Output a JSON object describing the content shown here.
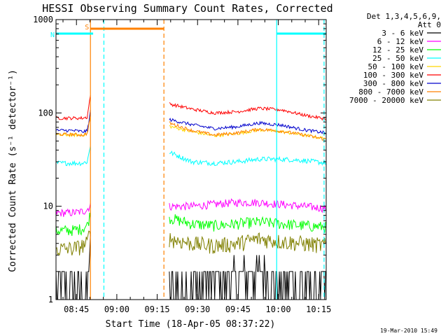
{
  "chart_data": {
    "type": "line",
    "title": "HESSI Observing Summary Count Rates, Corrected",
    "xlabel": "Start Time (18-Apr-05 08:37:22)",
    "ylabel": "Corrected Count Rate (s⁻¹ detector⁻¹)",
    "yscale": "log",
    "ylim": [
      1,
      1000
    ],
    "xlim_minutes": [
      37.4,
      137.8
    ],
    "x_ticks": [
      {
        "label": "08:45",
        "minute": 45
      },
      {
        "label": "09:00",
        "minute": 60
      },
      {
        "label": "09:15",
        "minute": 75
      },
      {
        "label": "09:30",
        "minute": 90
      },
      {
        "label": "09:45",
        "minute": 105
      },
      {
        "label": "10:00",
        "minute": 120
      },
      {
        "label": "10:15",
        "minute": 135
      }
    ],
    "y_ticks": [
      {
        "label": "1",
        "value": 1
      },
      {
        "label": "10",
        "value": 10
      },
      {
        "label": "100",
        "value": 100
      },
      {
        "label": "1000",
        "value": 1000
      }
    ],
    "legend_header": [
      "Det 1,3,4,5,6,9,",
      "Att 0"
    ],
    "legend_placement": "right",
    "timestamp": "19-Mar-2010 15:49",
    "flags": [
      {
        "label": "S",
        "color": "#ff8000",
        "start": 50.2,
        "end": 77.5
      },
      {
        "label": "N",
        "color": "#00ffff",
        "start": 37.4,
        "end": 51.2
      },
      {
        "label": "",
        "color": "#00ffff",
        "start": 119.4,
        "end": 137.8
      }
    ],
    "markers": [
      {
        "minute": 50.2,
        "color": "#ff8000",
        "style": "solid"
      },
      {
        "minute": 77.5,
        "color": "#ff8000",
        "style": "dashed"
      },
      {
        "minute": 55.2,
        "color": "#00ffff",
        "style": "dashed"
      },
      {
        "minute": 119.4,
        "color": "#00ffff",
        "style": "solid"
      },
      {
        "minute": 137.0,
        "color": "#00ffff",
        "style": "dashed"
      }
    ],
    "segments": [
      [
        37.4,
        50.2
      ],
      [
        79.5,
        137.8
      ]
    ],
    "series": [
      {
        "name": "3 - 6 keV",
        "color": "#000000",
        "seg1": [
          1.3,
          1.4,
          1.5,
          3.5
        ],
        "seg2": [
          1.3,
          1.4,
          1.6,
          1.8,
          1.9,
          1.6,
          1.4,
          1.3
        ],
        "noise": 0.25
      },
      {
        "name": "6 - 12 keV",
        "color": "#ff00ff",
        "seg1": [
          8.5,
          8.8,
          9.2,
          10.5
        ],
        "seg2": [
          10,
          10,
          10.5,
          11,
          11,
          10.5,
          10,
          9.5
        ],
        "noise": 0.05
      },
      {
        "name": "12 - 25 keV",
        "color": "#00ff00",
        "seg1": [
          5.5,
          5.8,
          6.2,
          8.5
        ],
        "seg2": [
          7.5,
          6.5,
          6.2,
          6.5,
          6.8,
          6.5,
          6.2,
          6
        ],
        "noise": 0.07
      },
      {
        "name": "25 - 50 keV",
        "color": "#00ffff",
        "seg1": [
          29,
          29,
          30,
          45
        ],
        "seg2": [
          38,
          30,
          29,
          30,
          32,
          32,
          31,
          29
        ],
        "noise": 0.03
      },
      {
        "name": "50 - 100 keV",
        "color": "#ffd700",
        "seg1": [
          58,
          58,
          60,
          95
        ],
        "seg2": [
          72,
          63,
          57,
          60,
          66,
          63,
          58,
          53
        ],
        "noise": 0.02
      },
      {
        "name": "100 - 300 keV",
        "color": "#ff0000",
        "seg1": [
          88,
          88,
          90,
          160
        ],
        "seg2": [
          125,
          110,
          100,
          103,
          112,
          108,
          95,
          86
        ],
        "noise": 0.02
      },
      {
        "name": "300 - 800 keV",
        "color": "#0000cc",
        "seg1": [
          65,
          63,
          64,
          105
        ],
        "seg2": [
          85,
          75,
          68,
          71,
          78,
          74,
          66,
          61
        ],
        "noise": 0.02
      },
      {
        "name": "800 - 7000 keV",
        "color": "#ff8000",
        "seg1": [
          59,
          58,
          60,
          95
        ],
        "seg2": [
          78,
          65,
          58,
          61,
          67,
          64,
          58,
          52
        ],
        "noise": 0.02
      },
      {
        "name": "7000 - 20000 keV",
        "color": "#808000",
        "seg1": [
          3.5,
          3.8,
          4,
          6
        ],
        "seg2": [
          4.5,
          4,
          3.8,
          4,
          4.5,
          4.2,
          4,
          3.8
        ],
        "noise": 0.1
      }
    ]
  }
}
